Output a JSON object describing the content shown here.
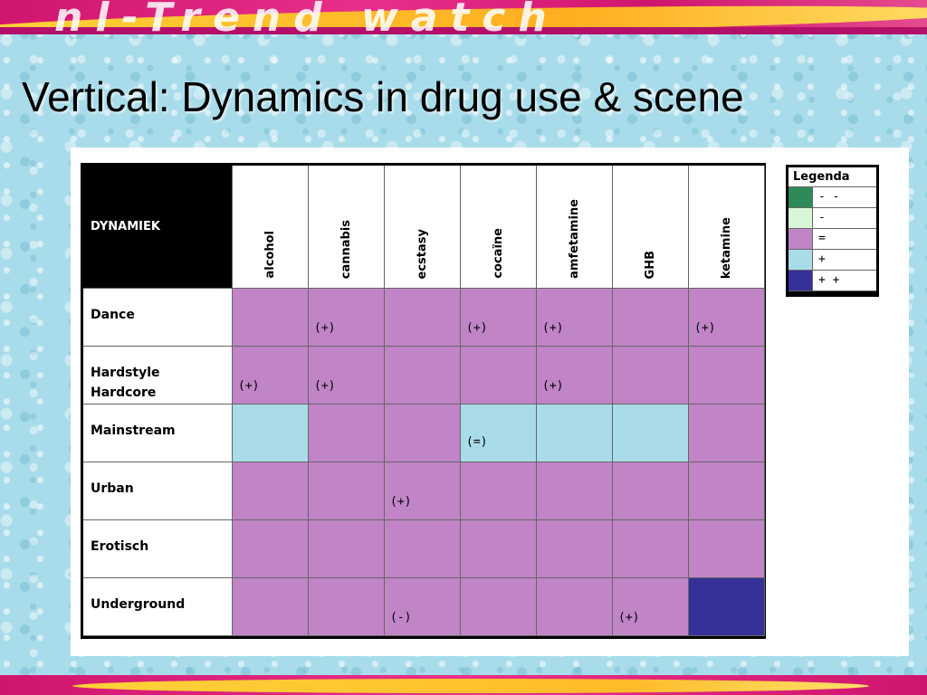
{
  "slide": {
    "banner_text": "nl-Trend watch",
    "title": "Vertical: Dynamics in drug use & scene"
  },
  "colors": {
    "very_low": "#2e8b57",
    "low": "#d8f7d8",
    "equal": "#c084c7",
    "high": "#a9dce8",
    "very_high": "#35309a"
  },
  "matrix": {
    "corner_label": "DYNAMIEK",
    "columns": [
      "alcohol",
      "cannabis",
      "ecstasy",
      "cocaïne",
      "amfetamine",
      "GHB",
      "ketamine"
    ],
    "rows": [
      {
        "label": "Dance",
        "cells": [
          {
            "level": "equal",
            "note": ""
          },
          {
            "level": "equal",
            "note": "(+)"
          },
          {
            "level": "equal",
            "note": ""
          },
          {
            "level": "equal",
            "note": "(+)"
          },
          {
            "level": "equal",
            "note": "(+)"
          },
          {
            "level": "equal",
            "note": ""
          },
          {
            "level": "equal",
            "note": "(+)"
          }
        ]
      },
      {
        "label": "Hardstyle\nHardcore",
        "cells": [
          {
            "level": "equal",
            "note": "(+)"
          },
          {
            "level": "equal",
            "note": "(+)"
          },
          {
            "level": "equal",
            "note": ""
          },
          {
            "level": "equal",
            "note": ""
          },
          {
            "level": "equal",
            "note": "(+)"
          },
          {
            "level": "equal",
            "note": ""
          },
          {
            "level": "equal",
            "note": ""
          }
        ]
      },
      {
        "label": "Mainstream",
        "cells": [
          {
            "level": "high",
            "note": ""
          },
          {
            "level": "equal",
            "note": ""
          },
          {
            "level": "equal",
            "note": ""
          },
          {
            "level": "high",
            "note": "(=)"
          },
          {
            "level": "high",
            "note": ""
          },
          {
            "level": "high",
            "note": ""
          },
          {
            "level": "equal",
            "note": ""
          }
        ]
      },
      {
        "label": "Urban",
        "cells": [
          {
            "level": "equal",
            "note": ""
          },
          {
            "level": "equal",
            "note": ""
          },
          {
            "level": "equal",
            "note": "(+)"
          },
          {
            "level": "equal",
            "note": ""
          },
          {
            "level": "equal",
            "note": ""
          },
          {
            "level": "equal",
            "note": ""
          },
          {
            "level": "equal",
            "note": ""
          }
        ]
      },
      {
        "label": "Erotisch",
        "cells": [
          {
            "level": "equal",
            "note": ""
          },
          {
            "level": "equal",
            "note": ""
          },
          {
            "level": "equal",
            "note": ""
          },
          {
            "level": "equal",
            "note": ""
          },
          {
            "level": "equal",
            "note": ""
          },
          {
            "level": "equal",
            "note": ""
          },
          {
            "level": "equal",
            "note": ""
          }
        ]
      },
      {
        "label": "Underground",
        "cells": [
          {
            "level": "equal",
            "note": ""
          },
          {
            "level": "equal",
            "note": ""
          },
          {
            "level": "equal",
            "note": "(-)"
          },
          {
            "level": "equal",
            "note": ""
          },
          {
            "level": "equal",
            "note": ""
          },
          {
            "level": "equal",
            "note": "(+)"
          },
          {
            "level": "very_high",
            "note": ""
          }
        ]
      }
    ]
  },
  "legend": {
    "title": "Legenda",
    "items": [
      {
        "level": "very_low",
        "label": "- -"
      },
      {
        "level": "low",
        "label": "-"
      },
      {
        "level": "equal",
        "label": "="
      },
      {
        "level": "high",
        "label": "+"
      },
      {
        "level": "very_high",
        "label": "+ +"
      }
    ]
  }
}
